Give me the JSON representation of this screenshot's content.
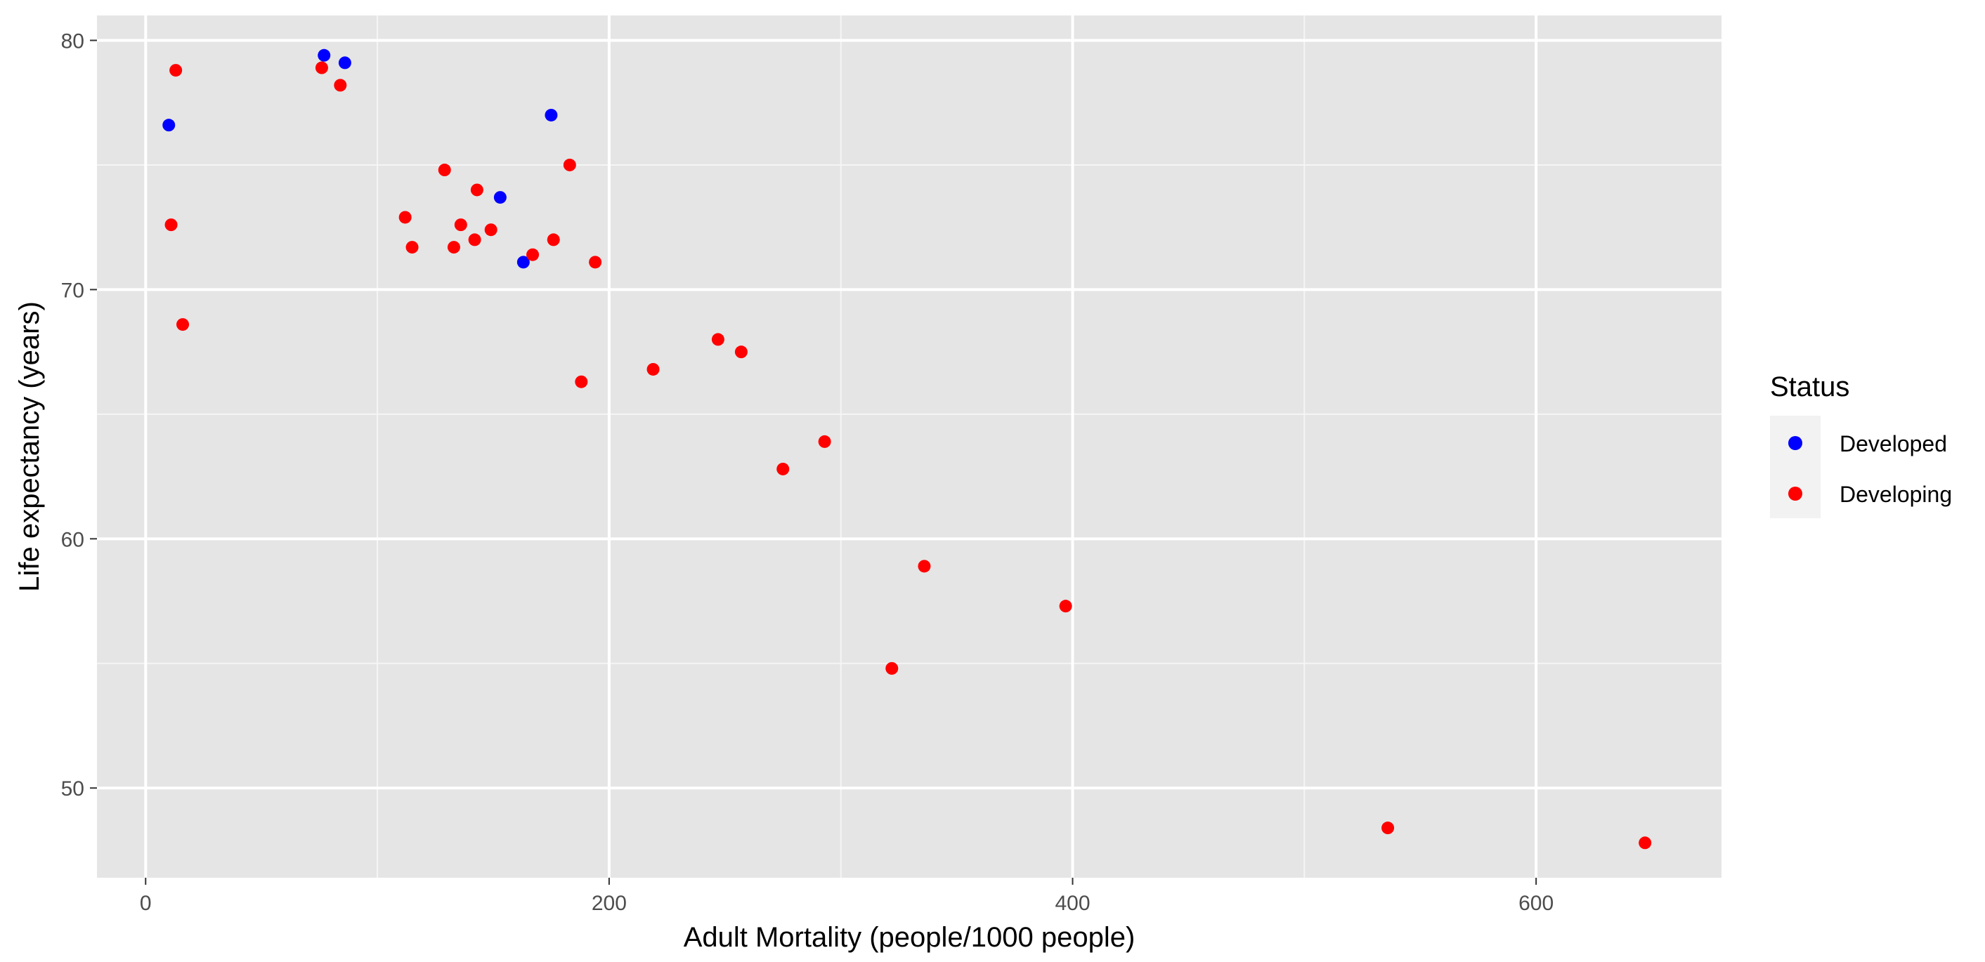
{
  "chart_data": {
    "type": "scatter",
    "xlabel": "Adult Mortality (people/1000 people)",
    "ylabel": "Life expectancy (years)",
    "xlim": [
      -21,
      680
    ],
    "ylim": [
      46.4,
      81
    ],
    "x_ticks": [
      0,
      200,
      400,
      600
    ],
    "x_tick_labels": [
      "0",
      "200",
      "400",
      "600"
    ],
    "y_ticks": [
      50,
      60,
      70,
      80
    ],
    "y_tick_labels": [
      "50",
      "60",
      "70",
      "80"
    ],
    "x_minor": [
      100,
      300,
      500
    ],
    "y_minor": [
      55,
      65,
      75
    ],
    "grid": true,
    "legend": {
      "title": "Status",
      "placement": "right",
      "entries": [
        "Developed",
        "Developing"
      ]
    },
    "series": [
      {
        "name": "Developed",
        "color": "#0000ff",
        "points": [
          {
            "x": 10,
            "y": 76.6
          },
          {
            "x": 77,
            "y": 79.4
          },
          {
            "x": 86,
            "y": 79.1
          },
          {
            "x": 153,
            "y": 73.7
          },
          {
            "x": 163,
            "y": 71.1
          },
          {
            "x": 175,
            "y": 77.0
          }
        ]
      },
      {
        "name": "Developing",
        "color": "#ff0000",
        "points": [
          {
            "x": 13,
            "y": 78.8
          },
          {
            "x": 11,
            "y": 72.6
          },
          {
            "x": 16,
            "y": 68.6
          },
          {
            "x": 76,
            "y": 78.9
          },
          {
            "x": 84,
            "y": 78.2
          },
          {
            "x": 112,
            "y": 72.9
          },
          {
            "x": 115,
            "y": 71.7
          },
          {
            "x": 129,
            "y": 74.8
          },
          {
            "x": 133,
            "y": 71.7
          },
          {
            "x": 136,
            "y": 72.6
          },
          {
            "x": 142,
            "y": 72.0
          },
          {
            "x": 143,
            "y": 74.0
          },
          {
            "x": 149,
            "y": 72.4
          },
          {
            "x": 167,
            "y": 71.4
          },
          {
            "x": 176,
            "y": 72.0
          },
          {
            "x": 183,
            "y": 75.0
          },
          {
            "x": 188,
            "y": 66.3
          },
          {
            "x": 194,
            "y": 71.1
          },
          {
            "x": 219,
            "y": 66.8
          },
          {
            "x": 247,
            "y": 68.0
          },
          {
            "x": 257,
            "y": 67.5
          },
          {
            "x": 275,
            "y": 62.8
          },
          {
            "x": 293,
            "y": 63.9
          },
          {
            "x": 322,
            "y": 54.8
          },
          {
            "x": 336,
            "y": 58.9
          },
          {
            "x": 397,
            "y": 57.3
          },
          {
            "x": 536,
            "y": 48.4
          },
          {
            "x": 647,
            "y": 47.8
          }
        ]
      }
    ]
  }
}
